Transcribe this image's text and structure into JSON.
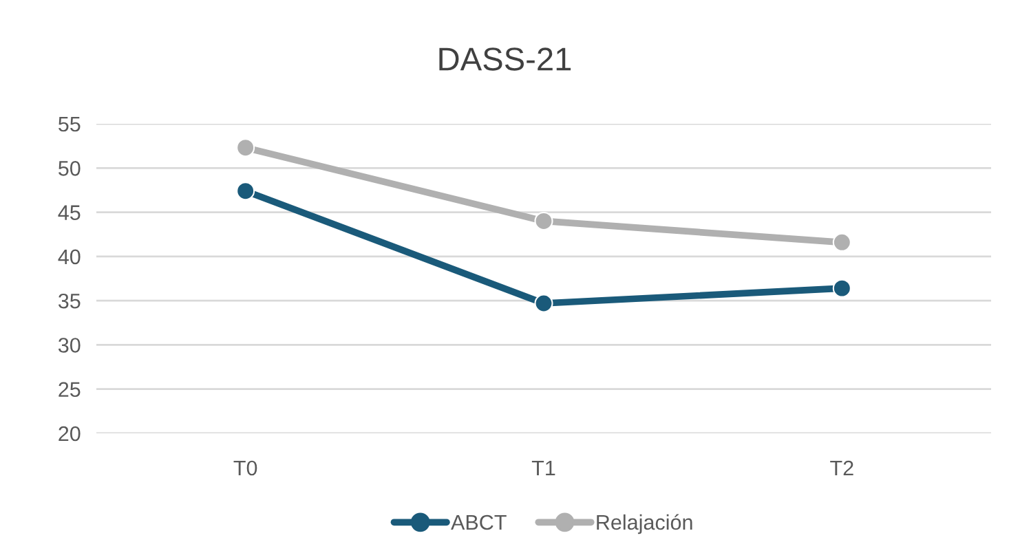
{
  "chart_data": {
    "type": "line",
    "title": "DASS-21",
    "categories": [
      "T0",
      "T1",
      "T2"
    ],
    "series": [
      {
        "name": "ABCT",
        "color": "#1a5a7a",
        "values": [
          47.4,
          34.7,
          36.4
        ]
      },
      {
        "name": "Relajación",
        "color": "#b0b0b0",
        "values": [
          52.3,
          44.0,
          41.6
        ]
      }
    ],
    "ylim": [
      20,
      55
    ],
    "yticks": [
      20,
      25,
      30,
      35,
      40,
      45,
      50,
      55
    ],
    "grid": "y",
    "legend": "bottom",
    "marker": "circle",
    "line_style": "solid"
  }
}
